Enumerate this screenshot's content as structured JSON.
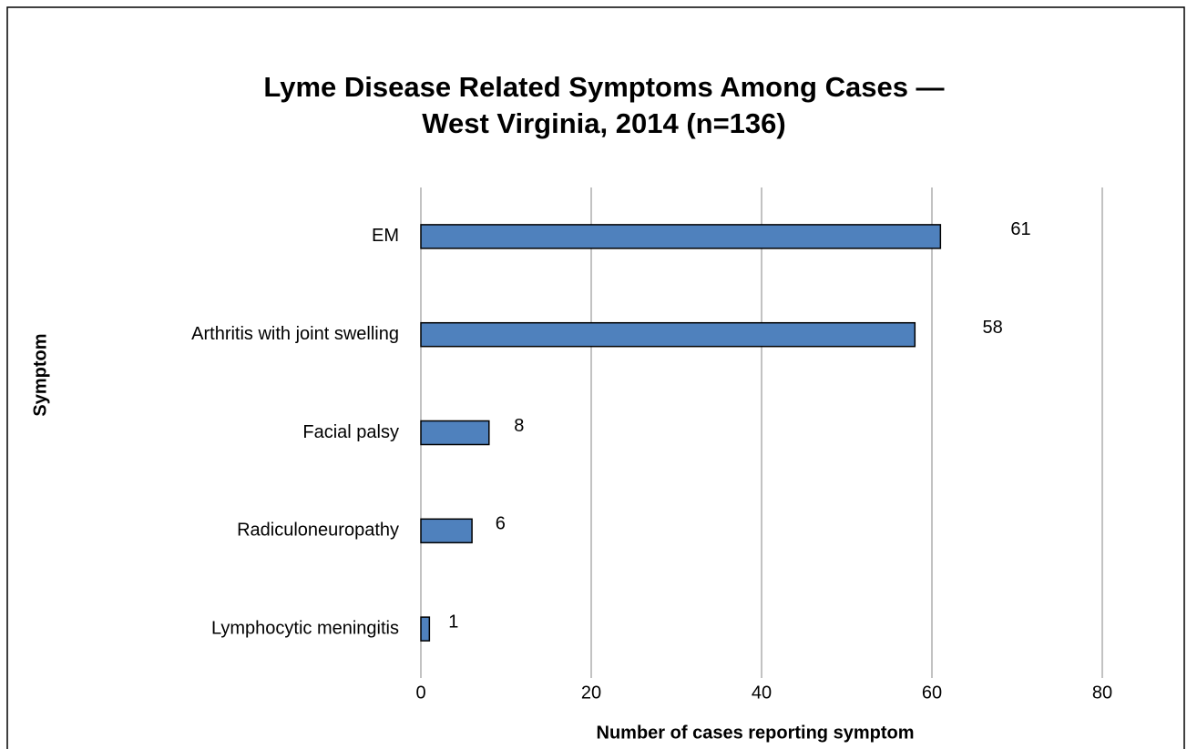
{
  "chart_data": {
    "type": "bar",
    "orientation": "horizontal",
    "title": [
      "Lyme Disease Related Symptoms Among Cases —",
      "West Virginia, 2014 (n=136)"
    ],
    "xlabel": "Number of cases reporting symptom",
    "ylabel": "Symptom",
    "categories": [
      "EM",
      "Arthritis with joint swelling",
      "Facial palsy",
      "Radiculoneuropathy",
      "Lymphocytic meningitis"
    ],
    "values": [
      61,
      58,
      8,
      6,
      1
    ],
    "color": "#4f81bd",
    "xlim": [
      0,
      80
    ],
    "xticks": [
      0,
      20,
      40,
      60,
      80
    ],
    "grid": true
  }
}
